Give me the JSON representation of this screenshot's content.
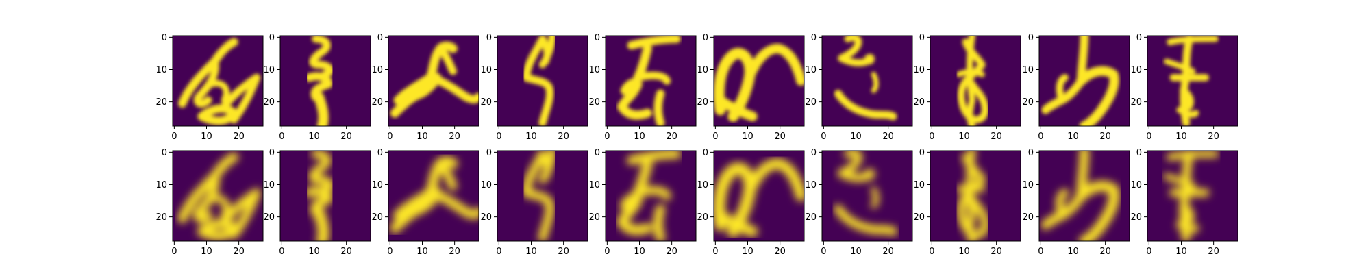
{
  "figure": {
    "rows": 2,
    "columns": 10,
    "row_roles": [
      "original",
      "reconstruction"
    ],
    "image_size": "28x28",
    "colormap": "viridis",
    "background_color": "#440154",
    "stroke_color": "#fde725",
    "x_tick_labels": [
      "0",
      "10",
      "20"
    ],
    "y_tick_labels": [
      "0",
      "10",
      "20"
    ]
  },
  "panels": [
    {
      "glyph": "handwritten-character-1"
    },
    {
      "glyph": "handwritten-character-2"
    },
    {
      "glyph": "handwritten-character-3"
    },
    {
      "glyph": "handwritten-character-4"
    },
    {
      "glyph": "handwritten-character-5"
    },
    {
      "glyph": "handwritten-character-6"
    },
    {
      "glyph": "handwritten-character-7"
    },
    {
      "glyph": "handwritten-character-8"
    },
    {
      "glyph": "handwritten-character-9"
    },
    {
      "glyph": "handwritten-character-10"
    }
  ]
}
